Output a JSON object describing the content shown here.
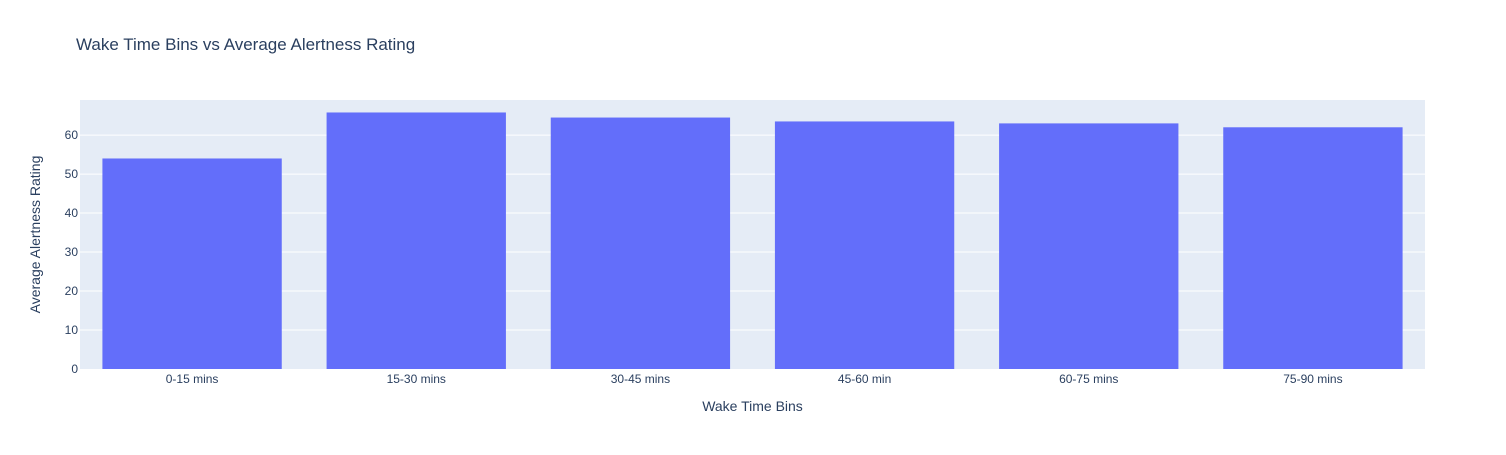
{
  "chart_data": {
    "type": "bar",
    "title": "Wake Time Bins vs Average Alertness Rating",
    "xlabel": "Wake Time Bins",
    "ylabel": "Average Alertness Rating",
    "categories": [
      "0-15 mins",
      "15-30 mins",
      "30-45 mins",
      "45-60 min",
      "60-75 mins",
      "75-90 mins"
    ],
    "values": [
      54,
      65.8,
      64.5,
      63.5,
      63,
      62
    ],
    "ylim": [
      0,
      69
    ],
    "yticks": [
      0,
      10,
      20,
      30,
      40,
      50,
      60
    ],
    "grid": true,
    "legend": "none",
    "colors": {
      "bar": "#636efa",
      "plot_background": "#e5ecf6",
      "grid": "#ffffff",
      "text": "#2a3f5f"
    }
  }
}
